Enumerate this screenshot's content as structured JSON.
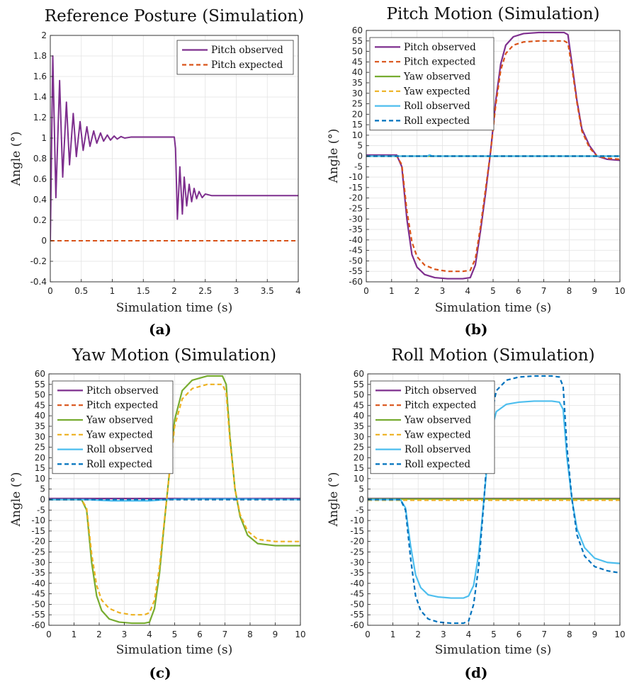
{
  "colors": {
    "pitch_obs": "#7E2F8E",
    "pitch_exp": "#D95319",
    "yaw_obs": "#77AC30",
    "yaw_exp": "#EDB120",
    "roll_obs": "#4DBEEE",
    "roll_exp": "#0072BD"
  },
  "chart_data": [
    {
      "type": "line",
      "caption": "(a)",
      "title": "Reference Posture (Simulation)",
      "xlabel": "Simulation time (s)",
      "ylabel": "Angle (°)",
      "xlim": [
        0,
        4
      ],
      "ylim": [
        -0.4,
        2
      ],
      "xticks": [
        0,
        0.5,
        1,
        1.5,
        2,
        2.5,
        3,
        3.5,
        4
      ],
      "xtick_labels": [
        "0",
        "0.5",
        "1",
        "1.5",
        "2",
        "2.5",
        "3",
        "3.5",
        "4"
      ],
      "yticks": [
        -0.4,
        -0.2,
        0,
        0.2,
        0.4,
        0.6,
        0.8,
        1,
        1.2,
        1.4,
        1.6,
        1.8,
        2
      ],
      "ytick_labels": [
        "-0.4",
        "-0.2",
        "0",
        "0.2",
        "0.4",
        "0.6",
        "0.8",
        "1",
        "1.2",
        "1.4",
        "1.6",
        "1.8",
        "2"
      ],
      "grid": true,
      "legend": "top-right",
      "series": [
        {
          "name": "Pitch observed",
          "style": "solid",
          "color_key": "pitch_obs",
          "x": [
            0,
            0.04,
            0.09,
            0.15,
            0.2,
            0.26,
            0.31,
            0.37,
            0.42,
            0.48,
            0.53,
            0.59,
            0.64,
            0.7,
            0.75,
            0.81,
            0.86,
            0.92,
            0.97,
            1.03,
            1.08,
            1.14,
            1.2,
            1.3,
            1.5,
            1.7,
            1.9,
            2.0,
            2.02,
            2.05,
            2.09,
            2.13,
            2.16,
            2.2,
            2.24,
            2.28,
            2.32,
            2.36,
            2.4,
            2.45,
            2.5,
            2.6,
            3,
            3.5,
            4
          ],
          "y": [
            0,
            1.8,
            0.42,
            1.56,
            0.62,
            1.35,
            0.74,
            1.24,
            0.82,
            1.16,
            0.88,
            1.11,
            0.92,
            1.07,
            0.95,
            1.05,
            0.97,
            1.03,
            0.98,
            1.02,
            0.99,
            1.015,
            1.0,
            1.01,
            1.01,
            1.01,
            1.01,
            1.01,
            0.9,
            0.21,
            0.72,
            0.26,
            0.62,
            0.34,
            0.55,
            0.38,
            0.51,
            0.41,
            0.48,
            0.42,
            0.455,
            0.44,
            0.44,
            0.44,
            0.44
          ]
        },
        {
          "name": "Pitch expected",
          "style": "dashed",
          "color_key": "pitch_exp",
          "x": [
            0,
            4
          ],
          "y": [
            0,
            0
          ]
        }
      ]
    },
    {
      "type": "line",
      "caption": "(b)",
      "title": "Pitch Motion (Simulation)",
      "xlabel": "Simulation time (s)",
      "ylabel": "Angle (°)",
      "xlim": [
        0,
        10
      ],
      "ylim": [
        -60,
        60
      ],
      "xticks": [
        0,
        1,
        2,
        3,
        4,
        5,
        6,
        7,
        8,
        9,
        10
      ],
      "xtick_labels": [
        "0",
        "1",
        "2",
        "3",
        "4",
        "5",
        "6",
        "7",
        "8",
        "9",
        "10"
      ],
      "yticks": [
        -60,
        -55,
        -50,
        -45,
        -40,
        -35,
        -30,
        -25,
        -20,
        -15,
        -10,
        -5,
        0,
        5,
        10,
        15,
        20,
        25,
        30,
        35,
        40,
        45,
        50,
        55,
        60
      ],
      "ytick_labels": [
        "-60",
        "-55",
        "-50",
        "-45",
        "-40",
        "-35",
        "-30",
        "-25",
        "-20",
        "-15",
        "-10",
        "-5",
        "0",
        "5",
        "10",
        "15",
        "20",
        "25",
        "30",
        "35",
        "40",
        "45",
        "50",
        "55",
        "60"
      ],
      "grid": true,
      "legend": "top-left",
      "series": [
        {
          "name": "Pitch observed",
          "style": "solid",
          "color_key": "pitch_obs",
          "x": [
            0,
            1.2,
            1.4,
            1.6,
            1.8,
            2.0,
            2.3,
            2.7,
            3.2,
            3.8,
            4.1,
            4.3,
            4.5,
            4.7,
            4.9,
            5.1,
            5.3,
            5.5,
            5.8,
            6.2,
            6.8,
            7.5,
            7.8,
            7.95,
            8.1,
            8.3,
            8.5,
            8.8,
            9.1,
            9.5,
            10
          ],
          "y": [
            0.5,
            0.5,
            -5,
            -30,
            -47,
            -53,
            -56.5,
            -58,
            -58.5,
            -58.5,
            -58,
            -52,
            -36,
            -18,
            2,
            26,
            44,
            53,
            57,
            58.5,
            59,
            59,
            59,
            58,
            45,
            27,
            13,
            5,
            0,
            -1.5,
            -2
          ]
        },
        {
          "name": "Pitch expected",
          "style": "dashed",
          "color_key": "pitch_exp",
          "x": [
            0,
            1.2,
            1.4,
            1.6,
            1.8,
            2.0,
            2.3,
            2.7,
            3.2,
            3.8,
            4.1,
            4.3,
            4.5,
            4.7,
            4.9,
            5.1,
            5.3,
            5.5,
            5.8,
            6.2,
            6.8,
            7.5,
            7.8,
            7.95,
            8.1,
            8.3,
            8.5,
            8.8,
            9.1,
            9.5,
            10
          ],
          "y": [
            0,
            0,
            -4,
            -26,
            -41,
            -48,
            -52,
            -54,
            -55,
            -55,
            -54.5,
            -49,
            -34,
            -16,
            2,
            24,
            41,
            49,
            53,
            54.5,
            55,
            55,
            55,
            54,
            43,
            26,
            12,
            4,
            0,
            -1,
            -1.5
          ]
        },
        {
          "name": "Yaw observed",
          "style": "solid",
          "color_key": "yaw_obs",
          "x": [
            0,
            10
          ],
          "y": [
            0,
            0
          ]
        },
        {
          "name": "Yaw expected",
          "style": "dashed",
          "color_key": "yaw_exp",
          "x": [
            0,
            10
          ],
          "y": [
            0,
            0
          ]
        },
        {
          "name": "Roll observed",
          "style": "solid",
          "color_key": "roll_obs",
          "x": [
            0,
            2.4,
            2.5,
            2.6,
            10
          ],
          "y": [
            0,
            0,
            0.6,
            0,
            0
          ]
        },
        {
          "name": "Roll expected",
          "style": "dashed",
          "color_key": "roll_exp",
          "x": [
            0,
            10
          ],
          "y": [
            0,
            0
          ]
        }
      ]
    },
    {
      "type": "line",
      "caption": "(c)",
      "title": "Yaw Motion (Simulation)",
      "xlabel": "Simulation time (s)",
      "ylabel": "Angle (°)",
      "xlim": [
        0,
        10
      ],
      "ylim": [
        -60,
        60
      ],
      "xticks": [
        0,
        1,
        2,
        3,
        4,
        5,
        6,
        7,
        8,
        9,
        10
      ],
      "xtick_labels": [
        "0",
        "1",
        "2",
        "3",
        "4",
        "5",
        "6",
        "7",
        "8",
        "9",
        "10"
      ],
      "yticks": [
        -60,
        -55,
        -50,
        -45,
        -40,
        -35,
        -30,
        -25,
        -20,
        -15,
        -10,
        -5,
        0,
        5,
        10,
        15,
        20,
        25,
        30,
        35,
        40,
        45,
        50,
        55,
        60
      ],
      "ytick_labels": [
        "-60",
        "-55",
        "-50",
        "-45",
        "-40",
        "-35",
        "-30",
        "-25",
        "-20",
        "-15",
        "-10",
        "-5",
        "0",
        "5",
        "10",
        "15",
        "20",
        "25",
        "30",
        "35",
        "40",
        "45",
        "50",
        "55",
        "60"
      ],
      "grid": true,
      "legend": "top-left",
      "series": [
        {
          "name": "Pitch observed",
          "style": "solid",
          "color_key": "pitch_obs",
          "x": [
            0,
            10
          ],
          "y": [
            0.5,
            0.5
          ]
        },
        {
          "name": "Pitch expected",
          "style": "dashed",
          "color_key": "pitch_exp",
          "x": [
            0,
            10
          ],
          "y": [
            0,
            0
          ]
        },
        {
          "name": "Yaw observed",
          "style": "solid",
          "color_key": "yaw_obs",
          "x": [
            0,
            1.3,
            1.5,
            1.7,
            1.9,
            2.1,
            2.4,
            2.8,
            3.3,
            3.8,
            4.0,
            4.2,
            4.4,
            4.6,
            4.8,
            5.0,
            5.3,
            5.7,
            6.3,
            6.9,
            7.05,
            7.2,
            7.4,
            7.6,
            7.9,
            8.3,
            9,
            10
          ],
          "y": [
            0,
            0,
            -5,
            -30,
            -46,
            -53,
            -57,
            -58.5,
            -59,
            -59,
            -58.5,
            -52,
            -35,
            -10,
            14,
            38,
            52,
            57,
            59,
            59,
            55,
            30,
            5,
            -8,
            -17,
            -21,
            -22,
            -22
          ]
        },
        {
          "name": "Yaw expected",
          "style": "dashed",
          "color_key": "yaw_exp",
          "x": [
            0,
            1.3,
            1.5,
            1.7,
            1.9,
            2.1,
            2.4,
            2.8,
            3.3,
            3.8,
            4.0,
            4.2,
            4.4,
            4.6,
            4.8,
            5.0,
            5.3,
            5.7,
            6.3,
            6.9,
            7.05,
            7.2,
            7.4,
            7.6,
            7.9,
            8.3,
            9,
            10
          ],
          "y": [
            0,
            0,
            -4,
            -26,
            -41,
            -48,
            -52,
            -54,
            -55,
            -55,
            -54,
            -48,
            -32,
            -9,
            13,
            35,
            48,
            53,
            55,
            55,
            51,
            28,
            5,
            -7,
            -15,
            -19,
            -20,
            -20
          ]
        },
        {
          "name": "Roll observed",
          "style": "solid",
          "color_key": "roll_obs",
          "x": [
            0,
            1.5,
            2.5,
            4.0,
            4.6,
            5.5,
            7.5,
            10
          ],
          "y": [
            0,
            0,
            -0.6,
            -0.6,
            0,
            0.3,
            0.3,
            0
          ]
        },
        {
          "name": "Roll expected",
          "style": "dashed",
          "color_key": "roll_exp",
          "x": [
            0,
            10
          ],
          "y": [
            0,
            0
          ]
        }
      ]
    },
    {
      "type": "line",
      "caption": "(d)",
      "title": "Roll Motion (Simulation)",
      "xlabel": "Simulation time (s)",
      "ylabel": "Angle (°)",
      "xlim": [
        0,
        10
      ],
      "ylim": [
        -60,
        60
      ],
      "xticks": [
        0,
        1,
        2,
        3,
        4,
        5,
        6,
        7,
        8,
        9,
        10
      ],
      "xtick_labels": [
        "0",
        "1",
        "2",
        "3",
        "4",
        "5",
        "6",
        "7",
        "8",
        "9",
        "10"
      ],
      "yticks": [
        -60,
        -55,
        -50,
        -45,
        -40,
        -35,
        -30,
        -25,
        -20,
        -15,
        -10,
        -5,
        0,
        5,
        10,
        15,
        20,
        25,
        30,
        35,
        40,
        45,
        50,
        55,
        60
      ],
      "ytick_labels": [
        "-60",
        "-55",
        "-50",
        "-45",
        "-40",
        "-35",
        "-30",
        "-25",
        "-20",
        "-15",
        "-10",
        "-5",
        "0",
        "5",
        "10",
        "15",
        "20",
        "25",
        "30",
        "35",
        "40",
        "45",
        "50",
        "55",
        "60"
      ],
      "grid": true,
      "legend": "top-left",
      "series": [
        {
          "name": "Pitch observed",
          "style": "solid",
          "color_key": "pitch_obs",
          "x": [
            0,
            10
          ],
          "y": [
            0.5,
            0.5
          ]
        },
        {
          "name": "Pitch expected",
          "style": "dashed",
          "color_key": "pitch_exp",
          "x": [
            0,
            10
          ],
          "y": [
            0,
            0
          ]
        },
        {
          "name": "Yaw observed",
          "style": "solid",
          "color_key": "yaw_obs",
          "x": [
            0,
            10
          ],
          "y": [
            0.3,
            0.3
          ]
        },
        {
          "name": "Yaw expected",
          "style": "dashed",
          "color_key": "yaw_exp",
          "x": [
            0,
            10
          ],
          "y": [
            -0.3,
            -0.3
          ]
        },
        {
          "name": "Roll observed",
          "style": "solid",
          "color_key": "roll_obs",
          "x": [
            0,
            1.3,
            1.5,
            1.7,
            1.9,
            2.1,
            2.4,
            2.8,
            3.3,
            3.8,
            4.0,
            4.2,
            4.4,
            4.5,
            4.6,
            4.7,
            4.9,
            5.1,
            5.5,
            6.0,
            6.6,
            7.3,
            7.6,
            7.75,
            7.9,
            8.1,
            8.3,
            8.6,
            9.0,
            9.5,
            10
          ],
          "y": [
            0,
            0,
            -4,
            -22,
            -36,
            -42,
            -45.5,
            -46.5,
            -47,
            -47,
            -46,
            -41,
            -26,
            -14,
            -1,
            12,
            33,
            42,
            45.5,
            46.5,
            47,
            47,
            46.5,
            43,
            20,
            0,
            -14,
            -23,
            -28,
            -30,
            -30.5
          ]
        },
        {
          "name": "Roll expected",
          "style": "dashed",
          "color_key": "roll_exp",
          "x": [
            0,
            1.3,
            1.5,
            1.7,
            1.9,
            2.1,
            2.4,
            2.8,
            3.3,
            3.8,
            4.0,
            4.2,
            4.4,
            4.5,
            4.6,
            4.7,
            4.9,
            5.1,
            5.5,
            6.0,
            6.6,
            7.3,
            7.6,
            7.75,
            7.9,
            8.1,
            8.3,
            8.6,
            9.0,
            9.5,
            10
          ],
          "y": [
            0,
            0,
            -5,
            -28,
            -46,
            -53,
            -57,
            -58.5,
            -59,
            -59,
            -58,
            -50,
            -32,
            -17,
            -2,
            15,
            40,
            52,
            57,
            58.5,
            59,
            59,
            58.5,
            54,
            25,
            0,
            -17,
            -27,
            -32,
            -34,
            -35
          ]
        }
      ]
    }
  ]
}
